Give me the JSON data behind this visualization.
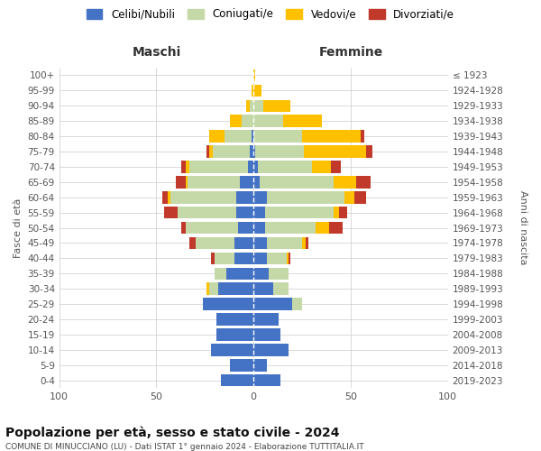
{
  "age_groups": [
    "0-4",
    "5-9",
    "10-14",
    "15-19",
    "20-24",
    "25-29",
    "30-34",
    "35-39",
    "40-44",
    "45-49",
    "50-54",
    "55-59",
    "60-64",
    "65-69",
    "70-74",
    "75-79",
    "80-84",
    "85-89",
    "90-94",
    "95-99",
    "100+"
  ],
  "birth_years": [
    "2019-2023",
    "2014-2018",
    "2009-2013",
    "2004-2008",
    "1999-2003",
    "1994-1998",
    "1989-1993",
    "1984-1988",
    "1979-1983",
    "1974-1978",
    "1969-1973",
    "1964-1968",
    "1959-1963",
    "1954-1958",
    "1949-1953",
    "1944-1948",
    "1939-1943",
    "1934-1938",
    "1929-1933",
    "1924-1928",
    "≤ 1923"
  ],
  "males": {
    "celibi": [
      17,
      12,
      22,
      19,
      19,
      26,
      18,
      14,
      10,
      10,
      8,
      9,
      9,
      7,
      3,
      2,
      1,
      0,
      0,
      0,
      0
    ],
    "coniugati": [
      0,
      0,
      0,
      0,
      0,
      0,
      5,
      6,
      10,
      20,
      27,
      30,
      34,
      27,
      30,
      19,
      14,
      6,
      2,
      0,
      0
    ],
    "vedovi": [
      0,
      0,
      0,
      0,
      0,
      0,
      1,
      0,
      0,
      0,
      0,
      0,
      1,
      1,
      2,
      2,
      8,
      6,
      2,
      1,
      0
    ],
    "divorziati": [
      0,
      0,
      0,
      0,
      0,
      0,
      0,
      0,
      2,
      3,
      2,
      7,
      3,
      5,
      2,
      1,
      0,
      0,
      0,
      0,
      0
    ]
  },
  "females": {
    "nubili": [
      14,
      7,
      18,
      14,
      13,
      20,
      10,
      8,
      7,
      7,
      6,
      6,
      7,
      3,
      2,
      1,
      0,
      0,
      0,
      0,
      0
    ],
    "coniugate": [
      0,
      0,
      0,
      0,
      0,
      5,
      8,
      10,
      10,
      18,
      26,
      35,
      40,
      38,
      28,
      25,
      25,
      15,
      5,
      0,
      0
    ],
    "vedove": [
      0,
      0,
      0,
      0,
      0,
      0,
      0,
      0,
      1,
      2,
      7,
      3,
      5,
      12,
      10,
      32,
      30,
      20,
      14,
      4,
      1
    ],
    "divorziate": [
      0,
      0,
      0,
      0,
      0,
      0,
      0,
      0,
      1,
      1,
      7,
      4,
      6,
      7,
      5,
      3,
      2,
      0,
      0,
      0,
      0
    ]
  },
  "colors": {
    "celibi": "#4472c4",
    "coniugati": "#c5d9a8",
    "vedovi": "#ffc000",
    "divorziati": "#c0392b"
  },
  "xlim": [
    -100,
    100
  ],
  "title": "Popolazione per età, sesso e stato civile - 2024",
  "subtitle": "COMUNE DI MINUCCIANO (LU) - Dati ISTAT 1° gennaio 2024 - Elaborazione TUTTITALIA.IT",
  "xlabel_left": "Maschi",
  "xlabel_right": "Femmine",
  "ylabel_left": "Fasce di età",
  "ylabel_right": "Anni di nascita",
  "legend_labels": [
    "Celibi/Nubili",
    "Coniugati/e",
    "Vedovi/e",
    "Divorziati/e"
  ],
  "bg_color": "#ffffff",
  "grid_color": "#cccccc"
}
